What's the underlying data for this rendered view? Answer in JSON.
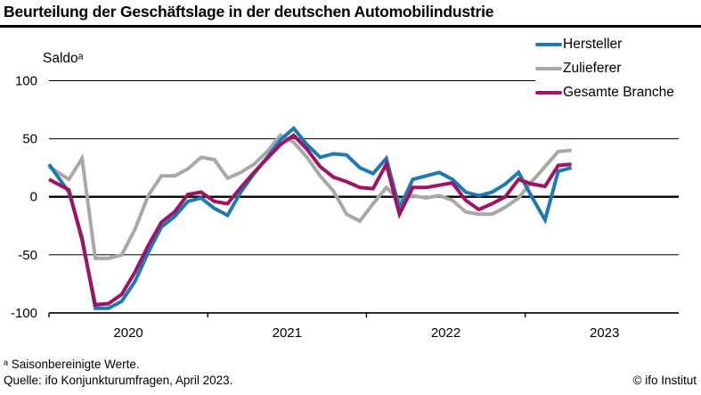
{
  "page": {
    "title": "Beurteilung der Geschäftslage in der deutschen Automobilindustrie",
    "footnote": "ᵃ Saisonbereinigte Werte.",
    "source": "Quelle: ifo Konjunkturumfragen, April 2023.",
    "copyright": "© ifo Institut"
  },
  "chart_data": {
    "type": "line",
    "ylabel": "Saldoᵃ",
    "ylim": [
      -100,
      100
    ],
    "yticks": [
      100,
      50,
      0,
      -50,
      -100
    ],
    "grid": "horizontal",
    "legend_position": "top-right",
    "frequency": "monthly",
    "x_start": "2020-01",
    "x_end": "2023-04",
    "x_year_labels": [
      "2020",
      "2021",
      "2022",
      "2023"
    ],
    "series": [
      {
        "name": "Hersteller",
        "color": "#1b79b5",
        "values": [
          28,
          4,
          -35,
          -96,
          -96,
          -90,
          -73,
          -48,
          -26,
          -17,
          -4,
          -1,
          -10,
          -16,
          4,
          20,
          34,
          49,
          59,
          45,
          34,
          37,
          36,
          25,
          20,
          33,
          -10,
          15,
          18,
          21,
          15,
          4,
          1,
          4,
          11,
          21,
          0,
          -20,
          22,
          25
        ]
      },
      {
        "name": "Zulieferer",
        "color": "#a8a8a8",
        "values": [
          26,
          15,
          33,
          -53,
          -53,
          -50,
          -28,
          1,
          18,
          18,
          24,
          34,
          32,
          16,
          21,
          28,
          39,
          53,
          47,
          34,
          18,
          5,
          -15,
          -21,
          -6,
          8,
          -3,
          1,
          -1,
          1,
          -3,
          -13,
          -15,
          -15,
          -9,
          -1,
          13,
          26,
          39,
          40
        ]
      },
      {
        "name": "Gesamte Branche",
        "color": "#a21263",
        "values": [
          15,
          6,
          -37,
          -93,
          -92,
          -84,
          -65,
          -42,
          -22,
          -13,
          2,
          4,
          -4,
          -6,
          8,
          21,
          33,
          45,
          53,
          41,
          26,
          17,
          13,
          8,
          7,
          28,
          -15,
          8,
          8,
          10,
          12,
          -3,
          -11,
          -6,
          0,
          15,
          11,
          9,
          27,
          28
        ]
      }
    ]
  }
}
